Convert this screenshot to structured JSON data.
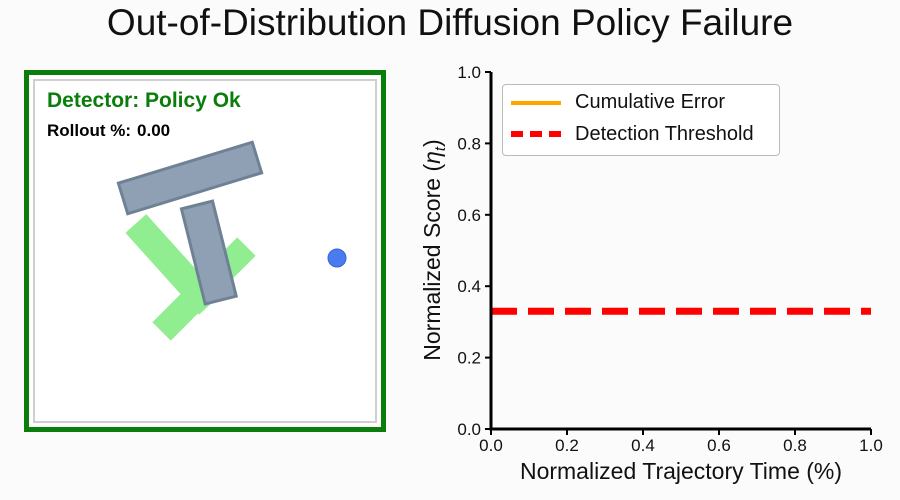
{
  "title": "Out-of-Distribution Diffusion Policy Failure",
  "simulation": {
    "detector_label": "Detector: Policy Ok",
    "rollout_label": "Rollout %:",
    "rollout_value": "0.00",
    "status_color": "#0a7d0a"
  },
  "chart_data": {
    "type": "line",
    "xlabel": "Normalized Trajectory Time (%)",
    "ylabel": "Normalized Score (η_t)",
    "xlim": [
      0.0,
      1.0
    ],
    "ylim": [
      0.0,
      1.0
    ],
    "xticks": [
      "0.0",
      "0.2",
      "0.4",
      "0.6",
      "0.8",
      "1.0"
    ],
    "yticks": [
      "0.0",
      "0.2",
      "0.4",
      "0.6",
      "0.8",
      "1.0"
    ],
    "grid": false,
    "legend_position": "top-left",
    "series": [
      {
        "name": "Cumulative Error",
        "color": "#ffa500",
        "style": "solid",
        "x": [],
        "y": []
      },
      {
        "name": "Detection Threshold",
        "color": "#ff0000",
        "style": "dashed",
        "x": [
          0.0,
          1.0
        ],
        "y": [
          0.33,
          0.33
        ]
      }
    ]
  },
  "colors": {
    "target_t": "#90ee90",
    "block_t": "#8fa0b5",
    "block_edge": "#6f8295",
    "agent": "#4a7cf0"
  }
}
